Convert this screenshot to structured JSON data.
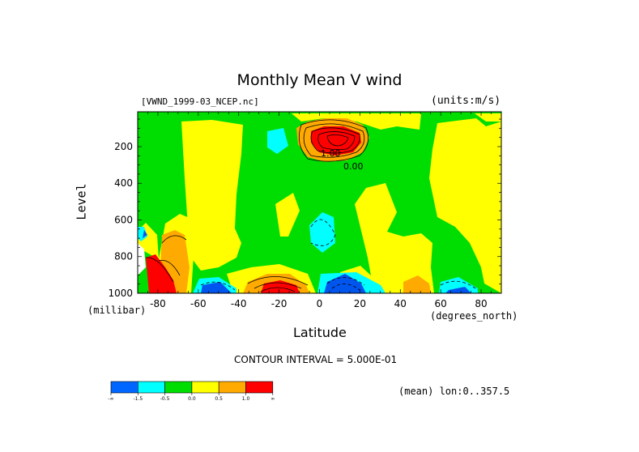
{
  "chart_data": {
    "type": "contour",
    "title": "Monthly Mean V wind",
    "dataset": "[VWND_1999-03_NCEP.nc]",
    "units": "(units:m/s)",
    "xlabel": "Latitude",
    "x_units": "(degrees_north)",
    "ylabel": "Level",
    "y_units": "(millibar)",
    "x_ticks": [
      -80,
      -60,
      -40,
      -20,
      0,
      20,
      40,
      60,
      80
    ],
    "x_tick_labels": [
      "-80",
      "-60",
      "-40",
      "-20",
      "0",
      "20",
      "40",
      "60",
      "80"
    ],
    "y_ticks": [
      200,
      400,
      600,
      800,
      1000
    ],
    "y_tick_labels": [
      "200",
      "400",
      "600",
      "800",
      "1000"
    ],
    "xlim": [
      -90,
      90
    ],
    "ylim": [
      1000,
      10
    ],
    "y_inverted": true,
    "contour_interval_text": "CONTOUR INTERVAL = 5.000E-01",
    "subset_text": "(mean) lon:0..357.5",
    "contour_labels": [
      "1.00",
      "0.00"
    ],
    "legend": {
      "colors": [
        "#0066ff",
        "#00ffff",
        "#00dd00",
        "#ffff00",
        "#ffaa00",
        "#ff0000"
      ],
      "tick_labels": [
        "-∞",
        "-1.5",
        "-0.5",
        "0.0",
        "0.5",
        "1.0",
        "∞"
      ]
    },
    "palette": {
      "strong_neg": "#0055ee",
      "neg": "#00ffff",
      "near_zero": "#00dd00",
      "pos": "#ffff00",
      "mid_pos": "#ffaa00",
      "strong_pos": "#ff0000"
    }
  }
}
